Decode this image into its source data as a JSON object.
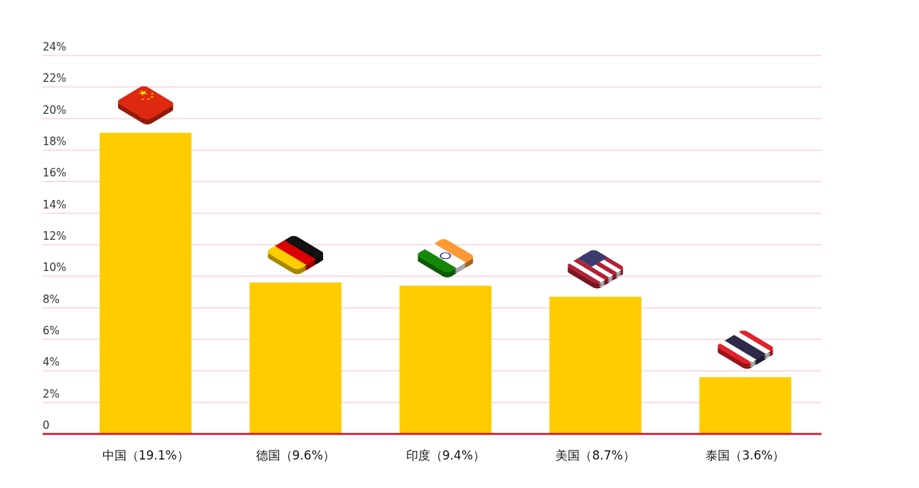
{
  "chart_data": {
    "type": "bar",
    "categories": [
      "中国（19.1%）",
      "德国（9.6%）",
      "印度（9.4%）",
      "美国（8.7%）",
      "泰国（3.6%）"
    ],
    "values": [
      19.1,
      9.6,
      9.4,
      8.7,
      3.6
    ],
    "color": "#ffcc00",
    "ylim": [
      0,
      24
    ],
    "yticks": [
      0,
      {
        "value": 2,
        "label": "2%"
      },
      {
        "value": 4,
        "label": "4%"
      },
      {
        "value": 6,
        "label": "6%"
      },
      {
        "value": 8,
        "label": "8%"
      },
      {
        "value": 10,
        "label": "10%"
      },
      {
        "value": 12,
        "label": "12%"
      },
      {
        "value": 14,
        "label": "14%"
      },
      {
        "value": 16,
        "label": "16%"
      },
      {
        "value": 18,
        "label": "18%"
      },
      {
        "value": 20,
        "label": "20%"
      },
      {
        "value": 22,
        "label": "22%"
      },
      {
        "value": 24,
        "label": "24%"
      }
    ],
    "grid": "y"
  }
}
